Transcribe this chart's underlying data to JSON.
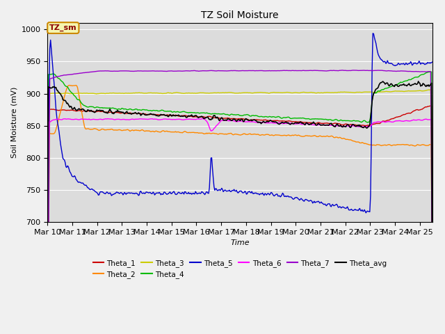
{
  "title": "TZ Soil Moisture",
  "xlabel": "Time",
  "ylabel": "Soil Moisture (mV)",
  "ylim": [
    700,
    1010
  ],
  "xlim": [
    0,
    15.5
  ],
  "yticks": [
    700,
    750,
    800,
    850,
    900,
    950,
    1000
  ],
  "xtick_labels": [
    "Mar 10",
    "Mar 11",
    "Mar 12",
    "Mar 13",
    "Mar 14",
    "Mar 15",
    "Mar 16",
    "Mar 17",
    "Mar 18",
    "Mar 19",
    "Mar 20",
    "Mar 21",
    "Mar 22",
    "Mar 23",
    "Mar 24",
    "Mar 25"
  ],
  "legend_label": "TZ_sm",
  "legend_label_bg": "#f5f5b0",
  "legend_label_border": "#cc8800",
  "series_colors": {
    "Theta_1": "#cc0000",
    "Theta_2": "#ff8800",
    "Theta_3": "#cccc00",
    "Theta_4": "#00bb00",
    "Theta_5": "#0000cc",
    "Theta_6": "#ff00ff",
    "Theta_7": "#9900cc",
    "Theta_avg": "#000000"
  },
  "n_points": 500,
  "plot_bg": "#dcdcdc",
  "fig_bg": "#f0f0f0"
}
